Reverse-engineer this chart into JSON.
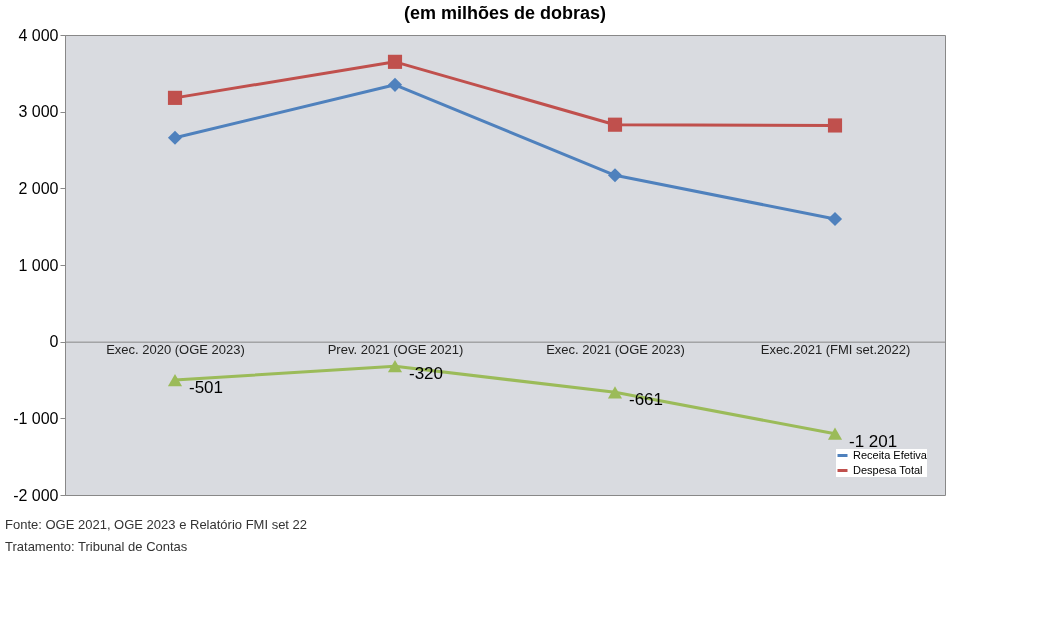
{
  "chart_data": {
    "type": "line",
    "title": "(em milhões de dobras)",
    "categories": [
      "Exec. 2020 (OGE 2023)",
      "Prev. 2021 (OGE 2021)",
      "Exec. 2021 (OGE 2023)",
      "Exec.2021 (FMI set.2022)"
    ],
    "series": [
      {
        "name": "Receita Efetiva",
        "color": "#4f81bd",
        "marker": "diamond",
        "values": [
          2660,
          3350,
          2170,
          1600
        ]
      },
      {
        "name": "Despesa Total",
        "color": "#c0504d",
        "marker": "square",
        "values": [
          3180,
          3650,
          2830,
          2820
        ]
      },
      {
        "color": "#9bbb59",
        "marker": "triangle",
        "values": [
          -501,
          -320,
          -661,
          -1201
        ],
        "value_labels": [
          "-501",
          "-320",
          "-661",
          "-1 201"
        ]
      }
    ],
    "ylim": [
      -2000,
      4000
    ],
    "yticks": [
      {
        "value": -2000,
        "label": "-2 000"
      },
      {
        "value": -1000,
        "label": "-1 000"
      },
      0,
      {
        "value": 1000,
        "label": "1 000"
      },
      {
        "value": 2000,
        "label": "2 000"
      },
      {
        "value": 3000,
        "label": "3 000"
      },
      {
        "value": 4000,
        "label": "4 000"
      }
    ],
    "grid": false,
    "legend": "bottom right",
    "annotations": [
      "Fonte: OGE 2021, OGE 2023 e Relatório FMI set 22",
      "Tratamento: Tribunal de Contas"
    ]
  }
}
